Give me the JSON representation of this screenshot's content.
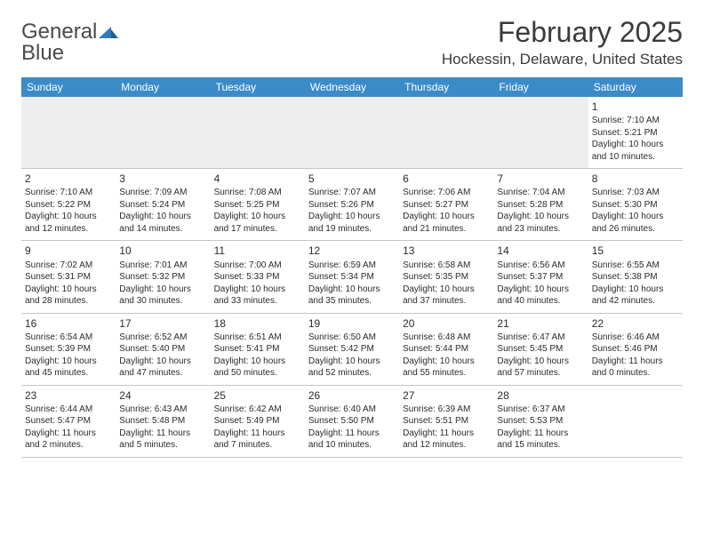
{
  "header": {
    "logo_text_1": "General",
    "logo_text_2": "Blue",
    "month_title": "February 2025",
    "location": "Hockessin, Delaware, United States"
  },
  "colors": {
    "header_bg": "#3b8bc8",
    "header_fg": "#ffffff",
    "logo_gray": "#4a4a4a",
    "logo_blue": "#2f7bbf",
    "text": "#2b2b2b",
    "grid_line": "#c6c6c6",
    "empty_bg": "#eeeeee"
  },
  "typography": {
    "title_fontsize": 32,
    "location_fontsize": 17,
    "dayhead_fontsize": 12,
    "daynum_fontsize": 12,
    "cell_fontsize": 10
  },
  "weekdays": [
    "Sunday",
    "Monday",
    "Tuesday",
    "Wednesday",
    "Thursday",
    "Friday",
    "Saturday"
  ],
  "weeks": [
    [
      null,
      null,
      null,
      null,
      null,
      null,
      {
        "day": "1",
        "sunrise": "7:10 AM",
        "sunset": "5:21 PM",
        "daylight": "10 hours and 10 minutes."
      }
    ],
    [
      {
        "day": "2",
        "sunrise": "7:10 AM",
        "sunset": "5:22 PM",
        "daylight": "10 hours and 12 minutes."
      },
      {
        "day": "3",
        "sunrise": "7:09 AM",
        "sunset": "5:24 PM",
        "daylight": "10 hours and 14 minutes."
      },
      {
        "day": "4",
        "sunrise": "7:08 AM",
        "sunset": "5:25 PM",
        "daylight": "10 hours and 17 minutes."
      },
      {
        "day": "5",
        "sunrise": "7:07 AM",
        "sunset": "5:26 PM",
        "daylight": "10 hours and 19 minutes."
      },
      {
        "day": "6",
        "sunrise": "7:06 AM",
        "sunset": "5:27 PM",
        "daylight": "10 hours and 21 minutes."
      },
      {
        "day": "7",
        "sunrise": "7:04 AM",
        "sunset": "5:28 PM",
        "daylight": "10 hours and 23 minutes."
      },
      {
        "day": "8",
        "sunrise": "7:03 AM",
        "sunset": "5:30 PM",
        "daylight": "10 hours and 26 minutes."
      }
    ],
    [
      {
        "day": "9",
        "sunrise": "7:02 AM",
        "sunset": "5:31 PM",
        "daylight": "10 hours and 28 minutes."
      },
      {
        "day": "10",
        "sunrise": "7:01 AM",
        "sunset": "5:32 PM",
        "daylight": "10 hours and 30 minutes."
      },
      {
        "day": "11",
        "sunrise": "7:00 AM",
        "sunset": "5:33 PM",
        "daylight": "10 hours and 33 minutes."
      },
      {
        "day": "12",
        "sunrise": "6:59 AM",
        "sunset": "5:34 PM",
        "daylight": "10 hours and 35 minutes."
      },
      {
        "day": "13",
        "sunrise": "6:58 AM",
        "sunset": "5:35 PM",
        "daylight": "10 hours and 37 minutes."
      },
      {
        "day": "14",
        "sunrise": "6:56 AM",
        "sunset": "5:37 PM",
        "daylight": "10 hours and 40 minutes."
      },
      {
        "day": "15",
        "sunrise": "6:55 AM",
        "sunset": "5:38 PM",
        "daylight": "10 hours and 42 minutes."
      }
    ],
    [
      {
        "day": "16",
        "sunrise": "6:54 AM",
        "sunset": "5:39 PM",
        "daylight": "10 hours and 45 minutes."
      },
      {
        "day": "17",
        "sunrise": "6:52 AM",
        "sunset": "5:40 PM",
        "daylight": "10 hours and 47 minutes."
      },
      {
        "day": "18",
        "sunrise": "6:51 AM",
        "sunset": "5:41 PM",
        "daylight": "10 hours and 50 minutes."
      },
      {
        "day": "19",
        "sunrise": "6:50 AM",
        "sunset": "5:42 PM",
        "daylight": "10 hours and 52 minutes."
      },
      {
        "day": "20",
        "sunrise": "6:48 AM",
        "sunset": "5:44 PM",
        "daylight": "10 hours and 55 minutes."
      },
      {
        "day": "21",
        "sunrise": "6:47 AM",
        "sunset": "5:45 PM",
        "daylight": "10 hours and 57 minutes."
      },
      {
        "day": "22",
        "sunrise": "6:46 AM",
        "sunset": "5:46 PM",
        "daylight": "11 hours and 0 minutes."
      }
    ],
    [
      {
        "day": "23",
        "sunrise": "6:44 AM",
        "sunset": "5:47 PM",
        "daylight": "11 hours and 2 minutes."
      },
      {
        "day": "24",
        "sunrise": "6:43 AM",
        "sunset": "5:48 PM",
        "daylight": "11 hours and 5 minutes."
      },
      {
        "day": "25",
        "sunrise": "6:42 AM",
        "sunset": "5:49 PM",
        "daylight": "11 hours and 7 minutes."
      },
      {
        "day": "26",
        "sunrise": "6:40 AM",
        "sunset": "5:50 PM",
        "daylight": "11 hours and 10 minutes."
      },
      {
        "day": "27",
        "sunrise": "6:39 AM",
        "sunset": "5:51 PM",
        "daylight": "11 hours and 12 minutes."
      },
      {
        "day": "28",
        "sunrise": "6:37 AM",
        "sunset": "5:53 PM",
        "daylight": "11 hours and 15 minutes."
      },
      null
    ]
  ],
  "labels": {
    "sunrise": "Sunrise:",
    "sunset": "Sunset:",
    "daylight": "Daylight:"
  }
}
